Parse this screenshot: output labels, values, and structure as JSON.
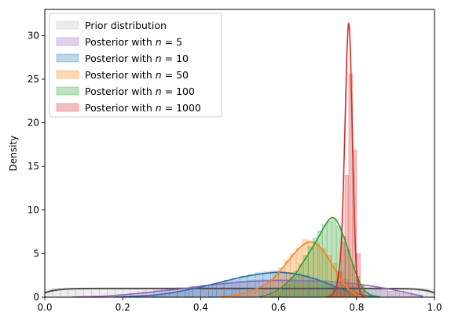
{
  "chart_data": {
    "type": "histogram+kde",
    "title": "",
    "xlabel": "",
    "ylabel": "Density",
    "xlim": [
      0.0,
      1.0
    ],
    "ylim": [
      0,
      33
    ],
    "xticks": [
      0.0,
      0.2,
      0.4,
      0.6,
      0.8,
      1.0
    ],
    "xtick_labels": [
      "0.0",
      "0.2",
      "0.4",
      "0.6",
      "0.8",
      "1.0"
    ],
    "yticks": [
      0,
      5,
      10,
      15,
      20,
      25,
      30
    ],
    "ytick_labels": [
      "0",
      "5",
      "10",
      "15",
      "20",
      "25",
      "30"
    ],
    "grid": false,
    "legend_position": "top-left",
    "series": [
      {
        "name": "Prior distribution",
        "legend_prefix": "Prior distribution",
        "legend_n": "",
        "fill_color": "#bdbdbd",
        "line_color": "#4d4d4d",
        "bin_width": 0.02,
        "bins_x": [
          0.0,
          0.02,
          0.04,
          0.06,
          0.08,
          0.1,
          0.12,
          0.14,
          0.16,
          0.18,
          0.2,
          0.22,
          0.24,
          0.26,
          0.28,
          0.3,
          0.32,
          0.34,
          0.36,
          0.38,
          0.4,
          0.42,
          0.44,
          0.46,
          0.48,
          0.5,
          0.52,
          0.54,
          0.56,
          0.58,
          0.6,
          0.62,
          0.64,
          0.66,
          0.68,
          0.7,
          0.72,
          0.74,
          0.76,
          0.78,
          0.8,
          0.82,
          0.84,
          0.86,
          0.88,
          0.9,
          0.92,
          0.94,
          0.96,
          0.98
        ],
        "bins_density": [
          0.95,
          1.05,
          0.98,
          1.02,
          0.96,
          1.04,
          1.0,
          0.97,
          1.03,
          0.99,
          1.01,
          0.98,
          1.02,
          1.0,
          0.96,
          1.04,
          0.99,
          1.01,
          1.0,
          0.98,
          1.02,
          1.0,
          0.97,
          1.03,
          1.0,
          0.99,
          1.01,
          1.0,
          0.98,
          1.02,
          1.0,
          0.99,
          1.01,
          0.97,
          1.03,
          1.0,
          0.98,
          1.02,
          1.0,
          0.99,
          1.01,
          1.0,
          0.98,
          1.02,
          0.99,
          1.01,
          1.0,
          0.97,
          1.03,
          0.95
        ],
        "kde_x": [
          0.0,
          0.02,
          0.05,
          0.1,
          0.2,
          0.3,
          0.4,
          0.5,
          0.6,
          0.7,
          0.8,
          0.9,
          0.95,
          0.98,
          1.0
        ],
        "kde_y": [
          0.5,
          0.75,
          0.92,
          0.99,
          1.0,
          1.0,
          1.0,
          1.0,
          1.0,
          1.0,
          1.0,
          0.99,
          0.92,
          0.75,
          0.5
        ]
      },
      {
        "name": "Posterior with n = 5",
        "legend_prefix": "Posterior with ",
        "legend_n": "5",
        "fill_color": "#9467bd",
        "line_color": "#9467bd",
        "bin_width": 0.03,
        "bins_x": [
          0.1,
          0.13,
          0.16,
          0.19,
          0.22,
          0.25,
          0.28,
          0.31,
          0.34,
          0.37,
          0.4,
          0.43,
          0.46,
          0.49,
          0.52,
          0.55,
          0.58,
          0.61,
          0.64,
          0.67,
          0.7,
          0.73,
          0.76,
          0.79,
          0.82,
          0.85,
          0.88,
          0.91,
          0.94
        ],
        "bins_density": [
          0.05,
          0.1,
          0.2,
          0.3,
          0.45,
          0.6,
          0.8,
          0.95,
          1.1,
          1.25,
          1.4,
          1.6,
          1.7,
          1.85,
          1.95,
          2.0,
          2.05,
          2.0,
          1.95,
          1.85,
          1.75,
          1.6,
          1.45,
          1.3,
          1.1,
          0.9,
          0.7,
          0.45,
          0.25
        ],
        "kde_x": [
          0.07,
          0.15,
          0.2,
          0.25,
          0.3,
          0.35,
          0.4,
          0.45,
          0.5,
          0.55,
          0.6,
          0.65,
          0.7,
          0.75,
          0.8,
          0.85,
          0.9,
          0.95,
          0.97
        ],
        "kde_y": [
          0.02,
          0.12,
          0.28,
          0.48,
          0.72,
          0.95,
          1.25,
          1.5,
          1.72,
          1.85,
          1.92,
          1.92,
          1.85,
          1.72,
          1.5,
          1.2,
          0.8,
          0.3,
          0.1
        ]
      },
      {
        "name": "Posterior with n = 10",
        "legend_prefix": "Posterior with ",
        "legend_n": "10",
        "fill_color": "#1f77b4",
        "line_color": "#1f77b4",
        "bin_width": 0.02,
        "bins_x": [
          0.2,
          0.22,
          0.24,
          0.26,
          0.28,
          0.3,
          0.32,
          0.34,
          0.36,
          0.38,
          0.4,
          0.42,
          0.44,
          0.46,
          0.48,
          0.5,
          0.52,
          0.54,
          0.56,
          0.58,
          0.6,
          0.62,
          0.64,
          0.66,
          0.68,
          0.7,
          0.72,
          0.74,
          0.76,
          0.78,
          0.8,
          0.82
        ],
        "bins_density": [
          0.05,
          0.08,
          0.12,
          0.18,
          0.25,
          0.35,
          0.45,
          0.6,
          0.8,
          1.0,
          1.2,
          1.45,
          1.7,
          1.95,
          2.2,
          2.4,
          2.6,
          2.8,
          2.9,
          3.0,
          2.95,
          2.85,
          2.7,
          2.5,
          2.2,
          1.9,
          1.5,
          1.1,
          0.7,
          0.45,
          0.25,
          0.1
        ],
        "kde_x": [
          0.18,
          0.25,
          0.3,
          0.35,
          0.4,
          0.45,
          0.5,
          0.55,
          0.58,
          0.6,
          0.63,
          0.66,
          0.7,
          0.74,
          0.78,
          0.82,
          0.86
        ],
        "kde_y": [
          0.02,
          0.15,
          0.35,
          0.7,
          1.15,
          1.7,
          2.25,
          2.65,
          2.8,
          2.85,
          2.75,
          2.5,
          2.0,
          1.3,
          0.65,
          0.2,
          0.03
        ]
      },
      {
        "name": "Posterior with n = 50",
        "legend_prefix": "Posterior with ",
        "legend_n": "50",
        "fill_color": "#ff7f0e",
        "line_color": "#ff7f0e",
        "bin_width": 0.015,
        "bins_x": [
          0.48,
          0.495,
          0.51,
          0.525,
          0.54,
          0.555,
          0.57,
          0.585,
          0.6,
          0.615,
          0.63,
          0.645,
          0.66,
          0.675,
          0.69,
          0.705,
          0.72,
          0.735,
          0.75,
          0.765,
          0.78,
          0.795,
          0.81
        ],
        "bins_density": [
          0.1,
          0.2,
          0.35,
          0.6,
          0.9,
          1.3,
          1.9,
          2.6,
          3.4,
          4.2,
          5.0,
          5.6,
          6.6,
          6.4,
          6.2,
          5.6,
          4.8,
          3.9,
          2.9,
          2.0,
          1.2,
          0.6,
          0.25
        ],
        "kde_x": [
          0.45,
          0.5,
          0.55,
          0.58,
          0.6,
          0.62,
          0.64,
          0.66,
          0.68,
          0.7,
          0.72,
          0.74,
          0.76,
          0.78,
          0.8,
          0.83
        ],
        "kde_y": [
          0.05,
          0.35,
          1.1,
          1.9,
          2.8,
          3.9,
          5.0,
          5.9,
          6.35,
          6.0,
          5.0,
          3.5,
          2.0,
          0.9,
          0.3,
          0.03
        ]
      },
      {
        "name": "Posterior with n = 100",
        "legend_prefix": "Posterior with ",
        "legend_n": "100",
        "fill_color": "#2ca02c",
        "line_color": "#2ca02c",
        "bin_width": 0.012,
        "bins_x": [
          0.58,
          0.592,
          0.604,
          0.616,
          0.628,
          0.64,
          0.652,
          0.664,
          0.676,
          0.688,
          0.7,
          0.712,
          0.724,
          0.736,
          0.748,
          0.76,
          0.772,
          0.784,
          0.796,
          0.808,
          0.82
        ],
        "bins_density": [
          0.3,
          0.6,
          1.0,
          1.5,
          2.2,
          3.0,
          3.8,
          4.8,
          5.8,
          6.8,
          7.6,
          8.3,
          8.7,
          8.9,
          8.2,
          7.0,
          5.5,
          3.8,
          2.4,
          1.3,
          0.6
        ],
        "kde_x": [
          0.55,
          0.58,
          0.61,
          0.64,
          0.66,
          0.68,
          0.7,
          0.72,
          0.735,
          0.75,
          0.77,
          0.79,
          0.81,
          0.83,
          0.86
        ],
        "kde_y": [
          0.05,
          0.4,
          1.2,
          2.5,
          3.8,
          5.2,
          6.7,
          8.3,
          9.1,
          8.7,
          6.6,
          3.8,
          1.5,
          0.4,
          0.03
        ]
      },
      {
        "name": "Posterior with n = 1000",
        "legend_prefix": "Posterior with ",
        "legend_n": "1000",
        "fill_color": "#d62728",
        "line_color": "#d62728",
        "bin_width": 0.01,
        "bins_x": [
          0.73,
          0.74,
          0.75,
          0.76,
          0.77,
          0.78,
          0.79,
          0.8,
          0.81
        ],
        "bins_density": [
          0.3,
          1.2,
          3.0,
          6.3,
          14.0,
          25.6,
          16.9,
          5.0,
          1.0
        ],
        "kde_x": [
          0.72,
          0.735,
          0.75,
          0.76,
          0.765,
          0.77,
          0.775,
          0.78,
          0.785,
          0.79,
          0.795,
          0.8,
          0.81,
          0.82
        ],
        "kde_y": [
          0.02,
          0.2,
          1.5,
          5.5,
          11.0,
          19.0,
          27.5,
          31.4,
          27.0,
          17.0,
          8.5,
          3.0,
          0.5,
          0.03
        ]
      }
    ]
  }
}
